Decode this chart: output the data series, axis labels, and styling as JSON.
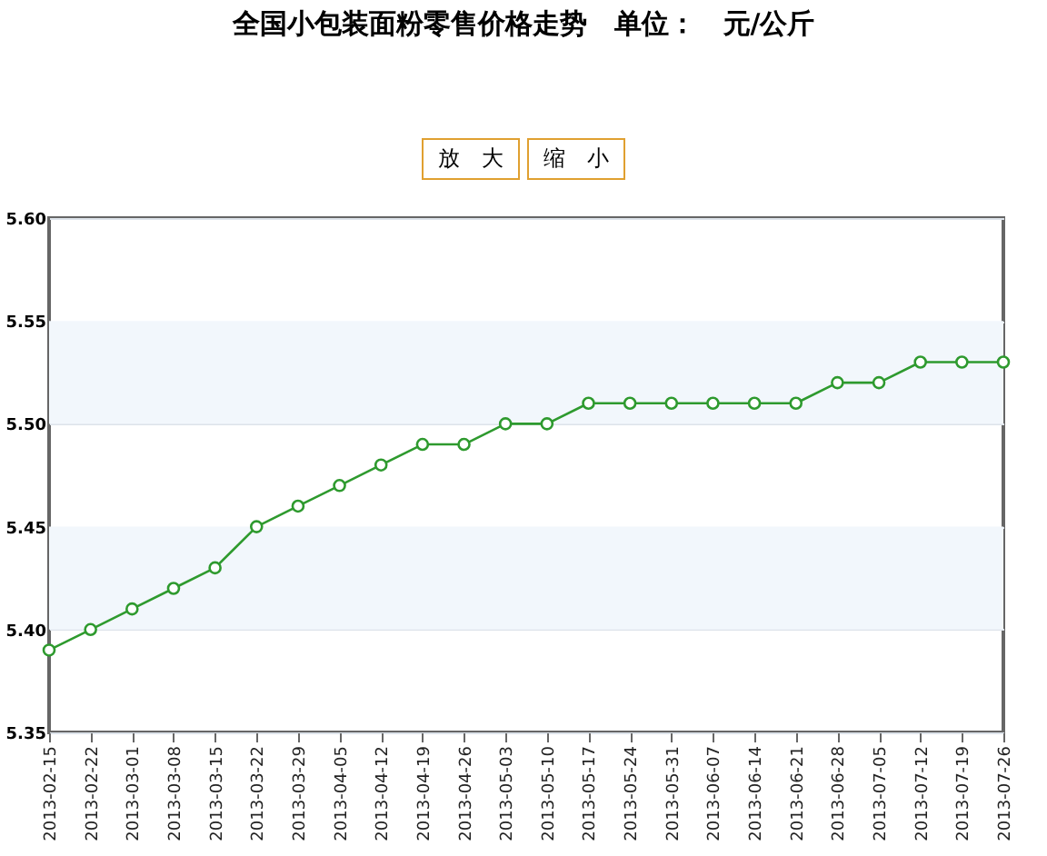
{
  "chart_data": {
    "type": "line",
    "title": "全国小包装面粉零售价格走势　单位：　元/公斤",
    "annotations": [
      "放　大",
      "缩　小"
    ],
    "categories": [
      "2013-02-15",
      "2013-02-22",
      "2013-03-01",
      "2013-03-08",
      "2013-03-15",
      "2013-03-22",
      "2013-03-29",
      "2013-04-05",
      "2013-04-12",
      "2013-04-19",
      "2013-04-26",
      "2013-05-03",
      "2013-05-10",
      "2013-05-17",
      "2013-05-24",
      "2013-05-31",
      "2013-06-07",
      "2013-06-14",
      "2013-06-21",
      "2013-06-28",
      "2013-07-05",
      "2013-07-12",
      "2013-07-19",
      "2013-07-26"
    ],
    "series": [
      {
        "color": "#2e9a2e",
        "values": [
          5.39,
          5.4,
          5.41,
          5.42,
          5.43,
          5.45,
          5.46,
          5.47,
          5.48,
          5.49,
          5.49,
          5.5,
          5.5,
          5.51,
          5.51,
          5.51,
          5.51,
          5.51,
          5.51,
          5.52,
          5.52,
          5.53,
          5.53,
          5.53
        ]
      }
    ],
    "ylim": [
      5.35,
      5.6
    ],
    "yticks": [
      5.35,
      {
        "value": 5.4,
        "label": "5.40"
      },
      5.45,
      {
        "value": 5.5,
        "label": "5.50"
      },
      5.55,
      {
        "value": 5.6,
        "label": "5.60"
      }
    ],
    "bands": [
      {
        "axis": "y",
        "from": 5.4,
        "to": 5.45,
        "color": "#f2f7fc"
      },
      {
        "axis": "y",
        "from": 5.5,
        "to": 5.55,
        "color": "#f2f7fc"
      }
    ],
    "grid": "y",
    "legend": false,
    "marker": "circle",
    "line_style": "solid"
  }
}
